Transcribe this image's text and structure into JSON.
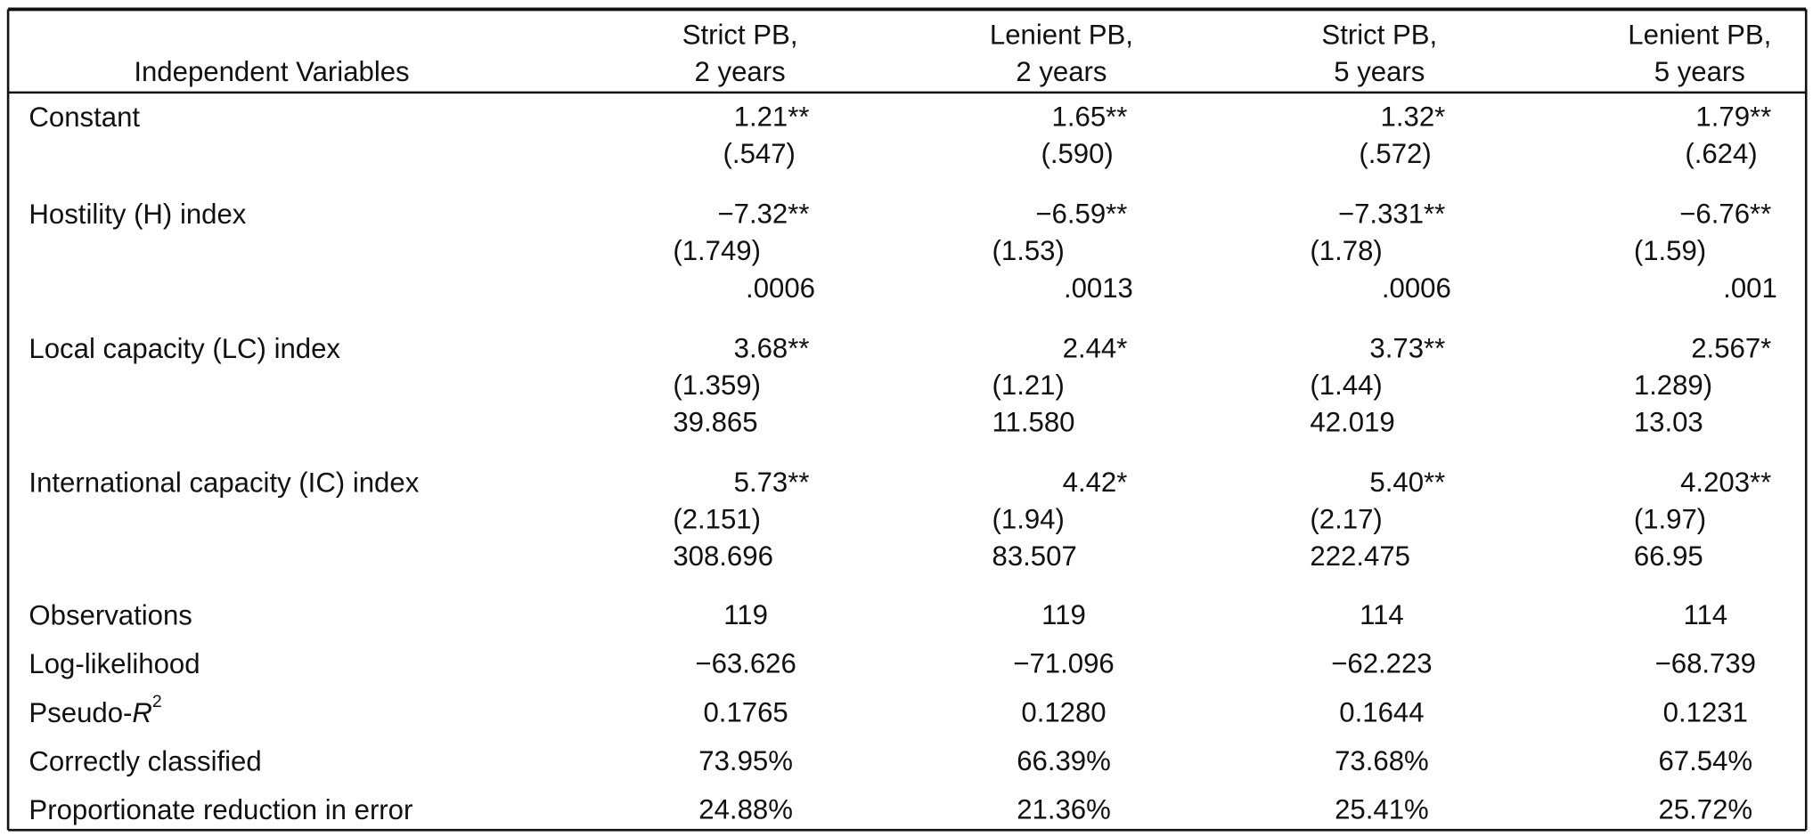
{
  "table": {
    "header": [
      "Independent Variables",
      [
        "Strict PB,",
        "2 years"
      ],
      [
        "Lenient PB,",
        "2 years"
      ],
      [
        "Strict PB,",
        "5 years"
      ],
      [
        "Lenient PB,",
        "5 years"
      ]
    ],
    "rows": [
      {
        "label": "Constant",
        "cells": [
          [
            "1.21**",
            "(.547)"
          ],
          [
            "1.65**",
            "(.590)"
          ],
          [
            "1.32*",
            "(.572)"
          ],
          [
            "1.79**",
            "(.624)"
          ]
        ]
      },
      {
        "label": "Hostility (H) index",
        "cells": [
          [
            "−7.32**",
            "(1.749)",
            ".0006"
          ],
          [
            "−6.59**",
            "(1.53)",
            ".0013"
          ],
          [
            "−7.331**",
            "(1.78)",
            ".0006"
          ],
          [
            "−6.76**",
            "(1.59)",
            ".001"
          ]
        ]
      },
      {
        "label": "Local capacity (LC) index",
        "cells": [
          [
            "3.68**",
            "(1.359)",
            "39.865"
          ],
          [
            "2.44*",
            "(1.21)",
            "11.580"
          ],
          [
            "3.73**",
            "(1.44)",
            "42.019"
          ],
          [
            "2.567*",
            "1.289)",
            "13.03"
          ]
        ]
      },
      {
        "label": "International capacity (IC) index",
        "cells": [
          [
            "5.73**",
            "(2.151)",
            "308.696"
          ],
          [
            "4.42*",
            "(1.94)",
            "83.507"
          ],
          [
            "5.40**",
            "(2.17)",
            "222.475"
          ],
          [
            "4.203**",
            "(1.97)",
            "66.95"
          ]
        ]
      },
      {
        "label": "Observations",
        "cells": [
          [
            "119"
          ],
          [
            "119"
          ],
          [
            "114"
          ],
          [
            "114"
          ]
        ]
      },
      {
        "label": "Log-likelihood",
        "cells": [
          [
            "−63.626"
          ],
          [
            "−71.096"
          ],
          [
            "−62.223"
          ],
          [
            "−68.739"
          ]
        ]
      },
      {
        "label": "Pseudo-",
        "label_italic": "R",
        "label_sup": "2",
        "cells": [
          [
            "0.1765"
          ],
          [
            "0.1280"
          ],
          [
            "0.1644"
          ],
          [
            "0.1231"
          ]
        ]
      },
      {
        "label": "Correctly classified",
        "cells": [
          [
            "73.95%"
          ],
          [
            "66.39%"
          ],
          [
            "73.68%"
          ],
          [
            "67.54%"
          ]
        ]
      },
      {
        "label": "Proportionate reduction in error",
        "cells": [
          [
            "24.88%"
          ],
          [
            "21.36%"
          ],
          [
            "25.41%"
          ],
          [
            "25.72%"
          ]
        ]
      }
    ]
  }
}
